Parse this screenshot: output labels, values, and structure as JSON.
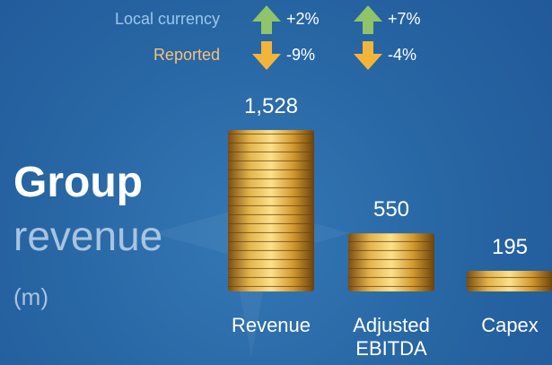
{
  "chart_data": {
    "type": "bar",
    "title": "Group",
    "subtitle": "revenue",
    "unit_label": "(m)",
    "categories": [
      "Revenue",
      "Adjusted EBITDA",
      "Capex"
    ],
    "values": [
      1528,
      550,
      195
    ],
    "value_labels": [
      "1,528",
      "550",
      "195"
    ],
    "color": "#d9a53a",
    "growth": [
      {
        "name": "Local currency",
        "color": "#8fc46a",
        "values": [
          2,
          7
        ],
        "value_labels": [
          "+2%",
          "+7%"
        ]
      },
      {
        "name": "Reported",
        "color": "#f2b53a",
        "values": [
          -9,
          -4
        ],
        "value_labels": [
          "-9%",
          "-4%"
        ]
      }
    ]
  }
}
